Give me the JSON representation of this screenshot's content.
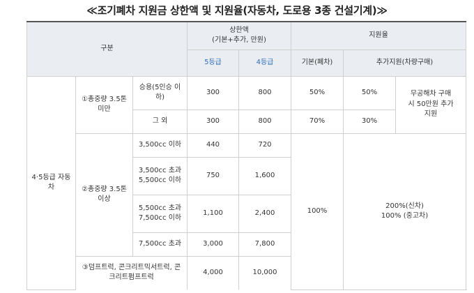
{
  "title": "≪조기폐차 지원금 상한액 및 지원율(자동차, 도로용 3종 건설기계)≫",
  "headers": {
    "gubun": "구분",
    "limit": "상한액\n(기본+추가, 만원)",
    "rate": "지원율",
    "grade5": "5등급",
    "grade4": "4등급",
    "basic": "기본(폐차)",
    "extra": "추가지원(차량구매)"
  },
  "rows": {
    "vehicle_class": "4·5등급 자동\n차",
    "group1": "①총중량 3.5톤\n미만",
    "group2": "②총중량 3.5톤\n이상",
    "group3": "③덤프트럭, 콘크리트믹서트럭, 콘\n크리트펌프트럭",
    "r1": {
      "sub": "승용(5인승 이\n하)",
      "g5": "300",
      "g4": "800",
      "basic": "50%",
      "extra": "50%"
    },
    "r1_note": "무공해차 구매\n시 50만원 추가\n지원",
    "r2": {
      "sub": "그 외",
      "g5": "300",
      "g4": "800",
      "basic": "70%",
      "extra": "30%"
    },
    "r3": {
      "sub": "3,500cc 이하",
      "g5": "440",
      "g4": "720"
    },
    "r4": {
      "sub": "3,500cc 초과\n5,500cc 이하",
      "g5": "750",
      "g4": "1,600"
    },
    "r5": {
      "sub": "5,500cc 초과\n7,500cc 이하",
      "g5": "1,100",
      "g4": "2,400"
    },
    "r6": {
      "sub": "7,500cc 초과",
      "g5": "3,000",
      "g4": "7,800"
    },
    "r7": {
      "g5": "4,000",
      "g4": "10,000"
    },
    "large_basic": "100%",
    "large_extra": "200%(신차)\n100% (중고차)"
  }
}
